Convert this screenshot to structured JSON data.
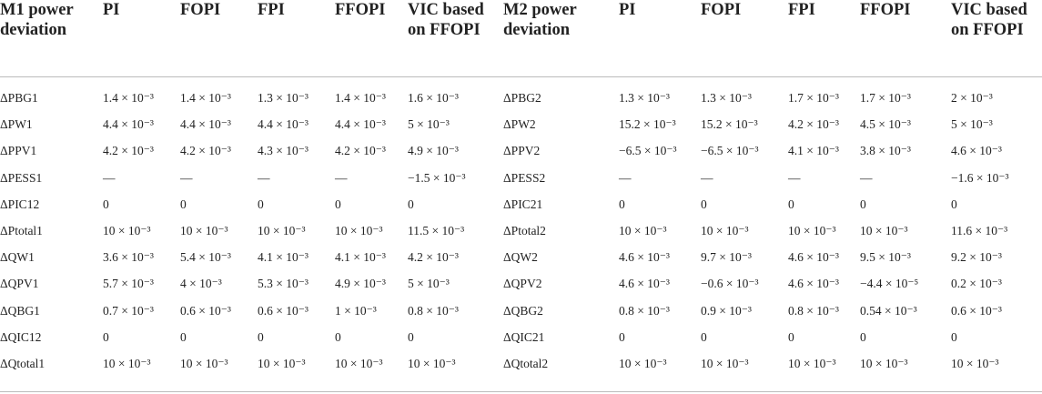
{
  "table": {
    "header": [
      "M1 power deviation",
      "PI",
      "FOPI",
      "FPI",
      "FFOPI",
      "VIC based on FFOPI",
      "M2 power deviation",
      "PI",
      "FOPI",
      "FPI",
      "FFOPI",
      "VIC based on FFOPI"
    ],
    "rows": [
      [
        "ΔPBG1",
        "1.4 × 10⁻³",
        "1.4 × 10⁻³",
        "1.3 × 10⁻³",
        "1.4 × 10⁻³",
        "1.6 × 10⁻³",
        "ΔPBG2",
        "1.3 × 10⁻³",
        "1.3 × 10⁻³",
        "1.7 × 10⁻³",
        "1.7 × 10⁻³",
        "2 × 10⁻³"
      ],
      [
        "ΔPW1",
        "4.4 × 10⁻³",
        "4.4 × 10⁻³",
        "4.4 × 10⁻³",
        "4.4 × 10⁻³",
        "5 × 10⁻³",
        "ΔPW2",
        "15.2 × 10⁻³",
        "15.2 × 10⁻³",
        "4.2 × 10⁻³",
        "4.5 × 10⁻³",
        "5 × 10⁻³"
      ],
      [
        "ΔPPV1",
        "4.2 × 10⁻³",
        "4.2 × 10⁻³",
        "4.3 × 10⁻³",
        "4.2 × 10⁻³",
        "4.9 × 10⁻³",
        "ΔPPV2",
        "−6.5 × 10⁻³",
        "−6.5 × 10⁻³",
        "4.1 × 10⁻³",
        "3.8 × 10⁻³",
        "4.6 × 10⁻³"
      ],
      [
        "ΔPESS1",
        "—",
        "—",
        "—",
        "—",
        "−1.5 × 10⁻³",
        "ΔPESS2",
        "—",
        "—",
        "—",
        "—",
        "−1.6 × 10⁻³"
      ],
      [
        "ΔPIC12",
        "0",
        "0",
        "0",
        "0",
        "0",
        "ΔPIC21",
        "0",
        "0",
        "0",
        "0",
        "0"
      ],
      [
        "ΔPtotal1",
        "10 × 10⁻³",
        "10 × 10⁻³",
        "10 × 10⁻³",
        "10 × 10⁻³",
        "11.5 × 10⁻³",
        "ΔPtotal2",
        "10 × 10⁻³",
        "10 × 10⁻³",
        "10 × 10⁻³",
        "10 × 10⁻³",
        "11.6 × 10⁻³"
      ],
      [
        "ΔQW1",
        "3.6 × 10⁻³",
        "5.4 × 10⁻³",
        "4.1 × 10⁻³",
        "4.1 × 10⁻³",
        "4.2 × 10⁻³",
        "ΔQW2",
        "4.6 × 10⁻³",
        "9.7 × 10⁻³",
        "4.6 × 10⁻³",
        "9.5 × 10⁻³",
        "9.2 × 10⁻³"
      ],
      [
        "ΔQPV1",
        "5.7 × 10⁻³",
        "4 × 10⁻³",
        "5.3 × 10⁻³",
        "4.9 × 10⁻³",
        "5 × 10⁻³",
        "ΔQPV2",
        "4.6 × 10⁻³",
        "−0.6 × 10⁻³",
        "4.6 × 10⁻³",
        "−4.4 × 10⁻⁵",
        "0.2 × 10⁻³"
      ],
      [
        "ΔQBG1",
        "0.7 × 10⁻³",
        "0.6 × 10⁻³",
        "0.6 × 10⁻³",
        "1 × 10⁻³",
        "0.8 × 10⁻³",
        "ΔQBG2",
        "0.8 × 10⁻³",
        "0.9 × 10⁻³",
        "0.8 × 10⁻³",
        "0.54 × 10⁻³",
        "0.6 × 10⁻³"
      ],
      [
        "ΔQIC12",
        "0",
        "0",
        "0",
        "0",
        "0",
        "ΔQIC21",
        "0",
        "0",
        "0",
        "0",
        "0"
      ],
      [
        "ΔQtotal1",
        "10 × 10⁻³",
        "10 × 10⁻³",
        "10 × 10⁻³",
        "10 × 10⁻³",
        "10 × 10⁻³",
        "ΔQtotal2",
        "10 × 10⁻³",
        "10 × 10⁻³",
        "10 × 10⁻³",
        "10 × 10⁻³",
        "10 × 10⁻³"
      ]
    ]
  }
}
